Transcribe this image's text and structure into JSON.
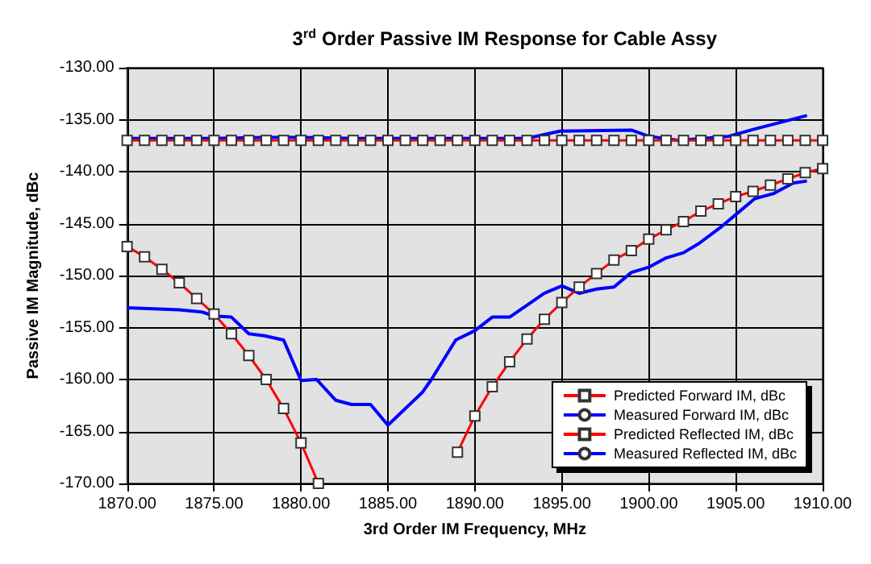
{
  "chart_data": {
    "type": "line",
    "title": "3$^{rd}$ Order Passive IM Response for Cable Assy",
    "xlabel": "3rd Order IM Frequency, MHz",
    "ylabel": "Passive IM Magnitude, dBc",
    "xlim": [
      1870,
      1910
    ],
    "xticks": [
      {
        "value": 1870,
        "label": "1870.00"
      },
      {
        "value": 1875,
        "label": "1875.00"
      },
      {
        "value": 1880,
        "label": "1880.00"
      },
      {
        "value": 1885,
        "label": "1885.00"
      },
      {
        "value": 1890,
        "label": "1890.00"
      },
      {
        "value": 1895,
        "label": "1895.00"
      },
      {
        "value": 1900,
        "label": "1900.00"
      },
      {
        "value": 1905,
        "label": "1905.00"
      },
      {
        "value": 1910,
        "label": "1910.00"
      }
    ],
    "ylim": [
      -170,
      -130
    ],
    "yticks": [
      {
        "value": -170,
        "label": "-170.00"
      },
      {
        "value": -165,
        "label": "-165.00"
      },
      {
        "value": -160,
        "label": "-160.00"
      },
      {
        "value": -155,
        "label": "-155.00"
      },
      {
        "value": -150,
        "label": "-150.00"
      },
      {
        "value": -145,
        "label": "-145.00"
      },
      {
        "value": -140,
        "label": "-140.00"
      },
      {
        "value": -135,
        "label": "-135.00"
      },
      {
        "value": -130,
        "label": "-130.00"
      }
    ],
    "grid": true,
    "legend": "bottom right",
    "line_style": "solid",
    "series": [
      {
        "name": "Predicted Forward IM, dBc",
        "color": "#ff0000",
        "marker": "square",
        "x": [
          1870,
          1871,
          1872,
          1873,
          1874,
          1875,
          1876,
          1877,
          1878,
          1879,
          1880,
          1881,
          1882,
          1883,
          1884,
          1885,
          1886,
          1887,
          1888,
          1889,
          1890,
          1891,
          1892,
          1893,
          1894,
          1895,
          1896,
          1897,
          1898,
          1899,
          1900,
          1901,
          1902,
          1903,
          1904,
          1905,
          1906,
          1907,
          1908,
          1909,
          1910
        ],
        "values": [
          -137,
          -137,
          -137,
          -137,
          -137,
          -137,
          -137,
          -137,
          -137,
          -137,
          -137,
          -137,
          -137,
          -137,
          -137,
          -137,
          -137,
          -137,
          -137,
          -137,
          -137,
          -137,
          -137,
          -137,
          -137,
          -137,
          -137,
          -137,
          -137,
          -137,
          -137,
          -137,
          -137,
          -137,
          -137,
          -137,
          -137,
          -137,
          -137,
          -137,
          -137
        ]
      },
      {
        "name": "Measured Forward IM, dBc",
        "color": "#0000ff",
        "marker": "none",
        "x": [
          1870,
          1875,
          1878,
          1880,
          1883,
          1890,
          1893,
          1894.9,
          1899,
          1900,
          1901.7,
          1904.6,
          1906.1,
          1909.1
        ],
        "values": [
          -136.8,
          -136.8,
          -136.7,
          -136.7,
          -136.8,
          -136.8,
          -136.8,
          -136.1,
          -136,
          -136.6,
          -137,
          -136.6,
          -135.9,
          -134.6
        ]
      },
      {
        "name": "Predicted Reflected IM, dBc",
        "color": "#ff0000",
        "marker": "square",
        "x": [
          1870,
          1871,
          1872,
          1873,
          1874,
          1875,
          1876,
          1877,
          1878,
          1879,
          1880,
          1881,
          1882,
          1883,
          1884,
          1885,
          1886,
          1887,
          1888,
          1889,
          1890,
          1891,
          1892,
          1893,
          1894,
          1895,
          1896,
          1897,
          1898,
          1899,
          1900,
          1901,
          1902,
          1903,
          1904,
          1905,
          1906,
          1907,
          1908,
          1909,
          1910
        ],
        "values": [
          -147.2,
          -148.2,
          -149.4,
          -150.7,
          -152.2,
          -153.7,
          -155.6,
          -157.7,
          -160,
          -162.8,
          -166.1,
          -170,
          null,
          null,
          null,
          null,
          null,
          null,
          null,
          -167,
          -163.5,
          -160.7,
          -158.3,
          -156.1,
          -154.2,
          -152.6,
          -151.1,
          -149.8,
          -148.5,
          -147.6,
          -146.5,
          -145.6,
          -144.8,
          -143.8,
          -143.1,
          -142.4,
          -141.9,
          -141.3,
          -140.7,
          -140.1,
          -139.7
        ]
      },
      {
        "name": "Measured Reflected IM, dBc",
        "color": "#0000ff",
        "marker": "none",
        "x": [
          1870,
          1873,
          1874.3,
          1875,
          1876,
          1877,
          1877.9,
          1879,
          1880,
          1880.9,
          1882,
          1882.9,
          1884,
          1885,
          1887,
          1887.5,
          1888.9,
          1890,
          1891,
          1892,
          1894,
          1895,
          1896,
          1897,
          1898,
          1899,
          1900,
          1901,
          1902,
          1902.9,
          1904.1,
          1905.1,
          1906.1,
          1907.2,
          1908.3,
          1909.1
        ],
        "values": [
          -153.1,
          -153.3,
          -153.5,
          -153.9,
          -154,
          -155.6,
          -155.8,
          -156.2,
          -160.1,
          -160,
          -162,
          -162.4,
          -162.4,
          -164.4,
          -161.2,
          -160,
          -156.2,
          -155.3,
          -154,
          -154,
          -151.7,
          -151,
          -151.7,
          -151.3,
          -151.1,
          -149.7,
          -149.2,
          -148.3,
          -147.8,
          -146.9,
          -145.4,
          -144,
          -142.6,
          -142.1,
          -141.1,
          -140.9
        ]
      }
    ]
  }
}
